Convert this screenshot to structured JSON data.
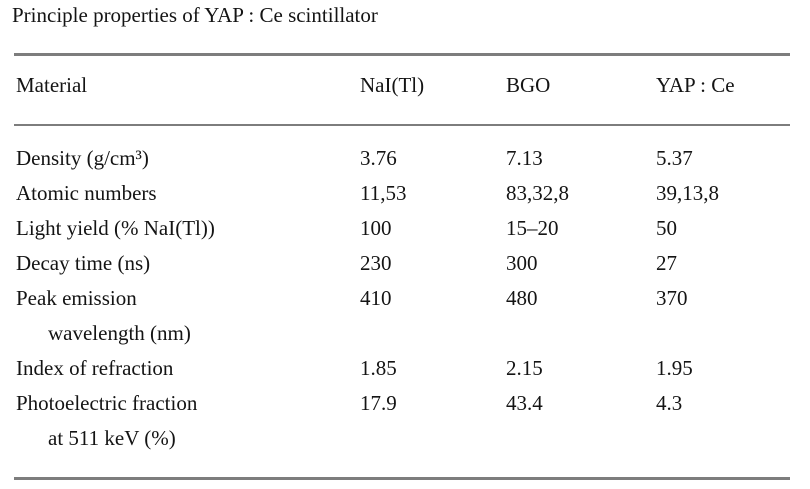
{
  "page": {
    "background_color": "#ffffff",
    "text_color": "#141414",
    "rule_color": "#7d7d7d"
  },
  "table": {
    "title": "Principle properties of YAP : Ce scintillator",
    "columns": [
      "Material",
      "NaI(Tl)",
      "BGO",
      "YAP : Ce"
    ],
    "rows": [
      {
        "label": "Density (g/cm³)",
        "label2": "",
        "values": [
          "3.76",
          "7.13",
          "5.37"
        ]
      },
      {
        "label": "Atomic numbers",
        "label2": "",
        "values": [
          "11,53",
          "83,32,8",
          "39,13,8"
        ]
      },
      {
        "label": "Light yield (% NaI(Tl))",
        "label2": "",
        "values": [
          "100",
          "15–20",
          "50"
        ]
      },
      {
        "label": "Decay time (ns)",
        "label2": "",
        "values": [
          "230",
          "300",
          "27"
        ]
      },
      {
        "label": "Peak emission",
        "label2": "wavelength (nm)",
        "values": [
          "410",
          "480",
          "370"
        ]
      },
      {
        "label": "Index of refraction",
        "label2": "",
        "values": [
          "1.85",
          "2.15",
          "1.95"
        ]
      },
      {
        "label": "Photoelectric fraction",
        "label2": "at 511 keV (%)",
        "values": [
          "17.9",
          "43.4",
          "4.3"
        ]
      }
    ]
  }
}
